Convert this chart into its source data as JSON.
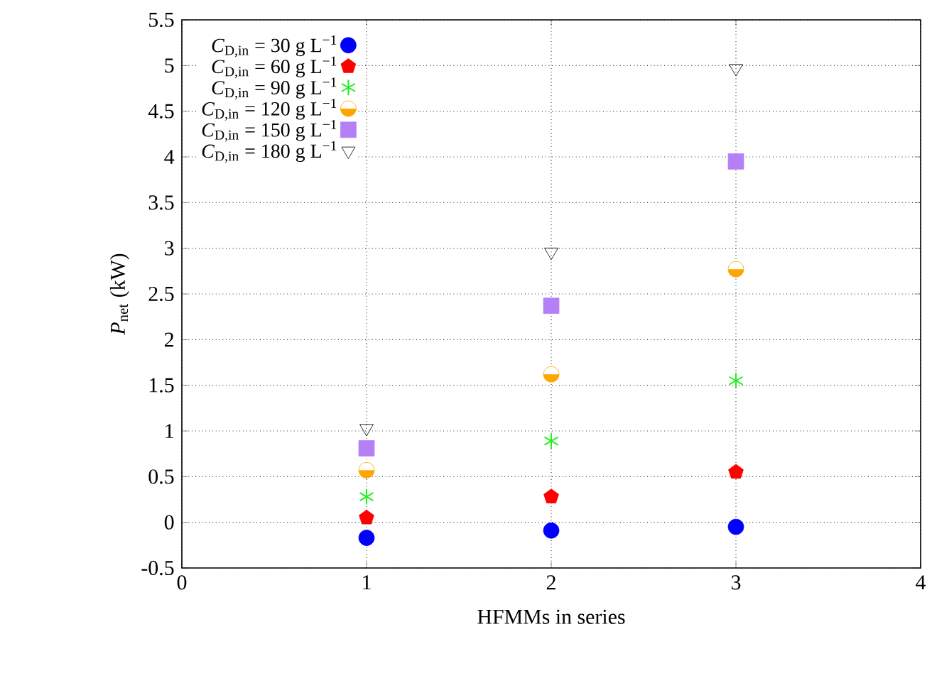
{
  "chart_data": {
    "type": "scatter",
    "xlabel": "HFMMs in series",
    "ylabel": "*P*$_{net}$ (kW)",
    "x": [
      1,
      2,
      3
    ],
    "series": [
      {
        "name": "*C*$_{D,in}$ = 30 g L$^{−1}$",
        "color": "#0000ff",
        "marker": "circle",
        "values": [
          -0.17,
          -0.09,
          -0.05
        ]
      },
      {
        "name": "*C*$_{D,in}$ = 60 g L$^{−1}$",
        "color": "#ff0000",
        "values": [
          0.05,
          0.28,
          0.55
        ]
      },
      {
        "name": "*C*$_{D,in}$ = 90 g L$^{−1}$",
        "color": "#22ee22",
        "marker": "cross",
        "values": [
          0.28,
          0.89,
          1.55
        ]
      },
      {
        "name": "*C*$_{D,in}$ = 120 g L$^{−1}$",
        "color": "#ffa500",
        "marker": "halfcircle",
        "values": [
          0.57,
          1.62,
          2.77
        ]
      },
      {
        "name": "*C*$_{D,in}$ = 150 g L$^{−1}$",
        "color": "#b580f5",
        "marker": "square",
        "values": [
          0.81,
          2.37,
          3.95
        ]
      },
      {
        "name": "*C*$_{D,in}$ = 180 g L$^{−1}$",
        "color": "#000000",
        "marker": "triangle_down",
        "values": [
          1.03,
          2.96,
          4.97
        ]
      }
    ],
    "xlim": [
      0,
      4
    ],
    "xticks": [
      0,
      1,
      2,
      3,
      4
    ],
    "ylim": [
      -0.5,
      5.5
    ],
    "yticks": [
      -0.5,
      0,
      0.5,
      1,
      1.5,
      2,
      2.5,
      3,
      3.5,
      4,
      4.5,
      5,
      5.5
    ],
    "grid": true,
    "legend": "top left"
  }
}
